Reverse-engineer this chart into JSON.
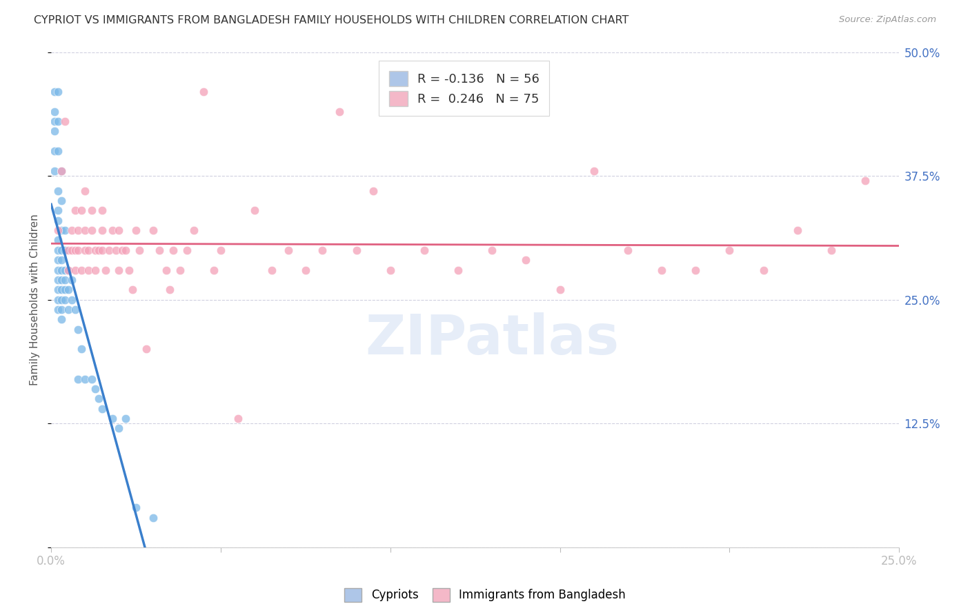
{
  "title": "CYPRIOT VS IMMIGRANTS FROM BANGLADESH FAMILY HOUSEHOLDS WITH CHILDREN CORRELATION CHART",
  "source": "Source: ZipAtlas.com",
  "ylabel_label": "Family Households with Children",
  "x_min": 0.0,
  "x_max": 0.25,
  "y_min": 0.0,
  "y_max": 0.5,
  "x_tick_pos": [
    0.0,
    0.05,
    0.1,
    0.15,
    0.2,
    0.25
  ],
  "x_tick_labels": [
    "0.0%",
    "",
    "",
    "",
    "",
    "25.0%"
  ],
  "y_ticks_right": [
    0.0,
    0.125,
    0.25,
    0.375,
    0.5
  ],
  "y_tick_labels_right": [
    "",
    "12.5%",
    "25.0%",
    "37.5%",
    "50.0%"
  ],
  "cypriot_color": "#7ab8e8",
  "cypriot_line_color": "#3a7fcc",
  "cypriot_dash_color": "#a0c0e8",
  "bangladesh_color": "#f4a0b8",
  "bangladesh_line_color": "#e06080",
  "watermark_text": "ZIPatlas",
  "background_color": "#ffffff",
  "legend_patch_cyp": "#aec6e8",
  "legend_patch_ban": "#f4b8c8",
  "legend_line1": "R = -0.136   N = 56",
  "legend_line2": "R =  0.246   N = 75",
  "cypriot_scatter": [
    [
      0.001,
      0.46
    ],
    [
      0.001,
      0.44
    ],
    [
      0.001,
      0.43
    ],
    [
      0.001,
      0.42
    ],
    [
      0.001,
      0.4
    ],
    [
      0.001,
      0.38
    ],
    [
      0.002,
      0.46
    ],
    [
      0.002,
      0.43
    ],
    [
      0.002,
      0.4
    ],
    [
      0.002,
      0.36
    ],
    [
      0.002,
      0.34
    ],
    [
      0.002,
      0.33
    ],
    [
      0.002,
      0.31
    ],
    [
      0.002,
      0.3
    ],
    [
      0.002,
      0.29
    ],
    [
      0.002,
      0.28
    ],
    [
      0.002,
      0.27
    ],
    [
      0.002,
      0.26
    ],
    [
      0.002,
      0.25
    ],
    [
      0.002,
      0.24
    ],
    [
      0.003,
      0.38
    ],
    [
      0.003,
      0.35
    ],
    [
      0.003,
      0.32
    ],
    [
      0.003,
      0.3
    ],
    [
      0.003,
      0.29
    ],
    [
      0.003,
      0.28
    ],
    [
      0.003,
      0.27
    ],
    [
      0.003,
      0.26
    ],
    [
      0.003,
      0.25
    ],
    [
      0.003,
      0.24
    ],
    [
      0.003,
      0.23
    ],
    [
      0.004,
      0.32
    ],
    [
      0.004,
      0.3
    ],
    [
      0.004,
      0.28
    ],
    [
      0.004,
      0.27
    ],
    [
      0.004,
      0.26
    ],
    [
      0.004,
      0.25
    ],
    [
      0.005,
      0.28
    ],
    [
      0.005,
      0.26
    ],
    [
      0.005,
      0.24
    ],
    [
      0.006,
      0.27
    ],
    [
      0.006,
      0.25
    ],
    [
      0.007,
      0.24
    ],
    [
      0.008,
      0.22
    ],
    [
      0.008,
      0.17
    ],
    [
      0.009,
      0.2
    ],
    [
      0.01,
      0.17
    ],
    [
      0.012,
      0.17
    ],
    [
      0.013,
      0.16
    ],
    [
      0.014,
      0.15
    ],
    [
      0.015,
      0.14
    ],
    [
      0.018,
      0.13
    ],
    [
      0.02,
      0.12
    ],
    [
      0.022,
      0.13
    ],
    [
      0.025,
      0.04
    ],
    [
      0.03,
      0.03
    ]
  ],
  "bangladesh_scatter": [
    [
      0.002,
      0.32
    ],
    [
      0.003,
      0.38
    ],
    [
      0.004,
      0.43
    ],
    [
      0.005,
      0.3
    ],
    [
      0.005,
      0.28
    ],
    [
      0.006,
      0.32
    ],
    [
      0.006,
      0.3
    ],
    [
      0.007,
      0.34
    ],
    [
      0.007,
      0.3
    ],
    [
      0.007,
      0.28
    ],
    [
      0.008,
      0.32
    ],
    [
      0.008,
      0.3
    ],
    [
      0.009,
      0.34
    ],
    [
      0.009,
      0.28
    ],
    [
      0.01,
      0.36
    ],
    [
      0.01,
      0.32
    ],
    [
      0.01,
      0.3
    ],
    [
      0.011,
      0.3
    ],
    [
      0.011,
      0.28
    ],
    [
      0.012,
      0.34
    ],
    [
      0.012,
      0.32
    ],
    [
      0.013,
      0.3
    ],
    [
      0.013,
      0.28
    ],
    [
      0.014,
      0.3
    ],
    [
      0.015,
      0.34
    ],
    [
      0.015,
      0.32
    ],
    [
      0.015,
      0.3
    ],
    [
      0.016,
      0.28
    ],
    [
      0.017,
      0.3
    ],
    [
      0.018,
      0.32
    ],
    [
      0.019,
      0.3
    ],
    [
      0.02,
      0.32
    ],
    [
      0.02,
      0.28
    ],
    [
      0.021,
      0.3
    ],
    [
      0.022,
      0.3
    ],
    [
      0.023,
      0.28
    ],
    [
      0.024,
      0.26
    ],
    [
      0.025,
      0.32
    ],
    [
      0.026,
      0.3
    ],
    [
      0.028,
      0.2
    ],
    [
      0.03,
      0.32
    ],
    [
      0.032,
      0.3
    ],
    [
      0.034,
      0.28
    ],
    [
      0.035,
      0.26
    ],
    [
      0.036,
      0.3
    ],
    [
      0.038,
      0.28
    ],
    [
      0.04,
      0.3
    ],
    [
      0.042,
      0.32
    ],
    [
      0.045,
      0.46
    ],
    [
      0.048,
      0.28
    ],
    [
      0.05,
      0.3
    ],
    [
      0.055,
      0.13
    ],
    [
      0.06,
      0.34
    ],
    [
      0.065,
      0.28
    ],
    [
      0.07,
      0.3
    ],
    [
      0.075,
      0.28
    ],
    [
      0.08,
      0.3
    ],
    [
      0.085,
      0.44
    ],
    [
      0.09,
      0.3
    ],
    [
      0.095,
      0.36
    ],
    [
      0.1,
      0.28
    ],
    [
      0.11,
      0.3
    ],
    [
      0.12,
      0.28
    ],
    [
      0.13,
      0.3
    ],
    [
      0.14,
      0.29
    ],
    [
      0.15,
      0.26
    ],
    [
      0.16,
      0.38
    ],
    [
      0.17,
      0.3
    ],
    [
      0.18,
      0.28
    ],
    [
      0.19,
      0.28
    ],
    [
      0.2,
      0.3
    ],
    [
      0.21,
      0.28
    ],
    [
      0.22,
      0.32
    ],
    [
      0.23,
      0.3
    ],
    [
      0.24,
      0.37
    ]
  ]
}
